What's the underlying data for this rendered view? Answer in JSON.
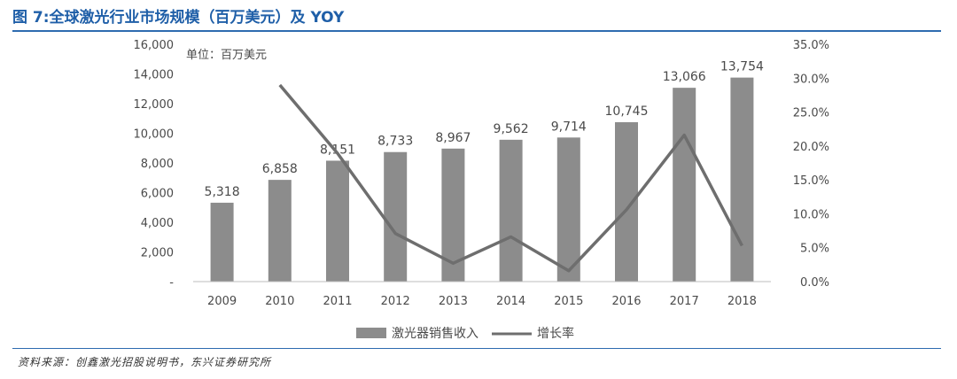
{
  "title": "图 7:全球激光行业市场规模（百万美元）及 YOY",
  "source": "资料来源：创鑫激光招股说明书，东兴证券研究所",
  "chart_data": {
    "type": "bar",
    "unit_note": "单位：百万美元",
    "categories": [
      "2009",
      "2010",
      "2011",
      "2012",
      "2013",
      "2014",
      "2015",
      "2016",
      "2017",
      "2018"
    ],
    "series": [
      {
        "name": "激光器销售收入",
        "type": "bar",
        "axis": "left",
        "values": [
          5318,
          6858,
          8151,
          8733,
          8967,
          9562,
          9714,
          10745,
          13066,
          13754
        ],
        "labels": [
          "5,318",
          "6,858",
          "8,151",
          "8,733",
          "8,967",
          "9,562",
          "9,714",
          "10,745",
          "13,066",
          "13,754"
        ],
        "color": "#8c8c8c"
      },
      {
        "name": "增长率",
        "type": "line",
        "axis": "right",
        "values": [
          null,
          29.0,
          18.9,
          7.1,
          2.7,
          6.6,
          1.6,
          10.6,
          21.6,
          5.3
        ],
        "color": "#6e6e6e"
      }
    ],
    "y_left": {
      "ylim": [
        0,
        16000
      ],
      "ticks": [
        "-",
        "2,000",
        "4,000",
        "6,000",
        "8,000",
        "10,000",
        "12,000",
        "14,000",
        "16,000"
      ]
    },
    "y_right": {
      "ylim": [
        0,
        35
      ],
      "ticks": [
        "0.0%",
        "5.0%",
        "10.0%",
        "15.0%",
        "20.0%",
        "25.0%",
        "30.0%",
        "35.0%"
      ]
    },
    "legend_position": "bottom",
    "grid": false
  }
}
